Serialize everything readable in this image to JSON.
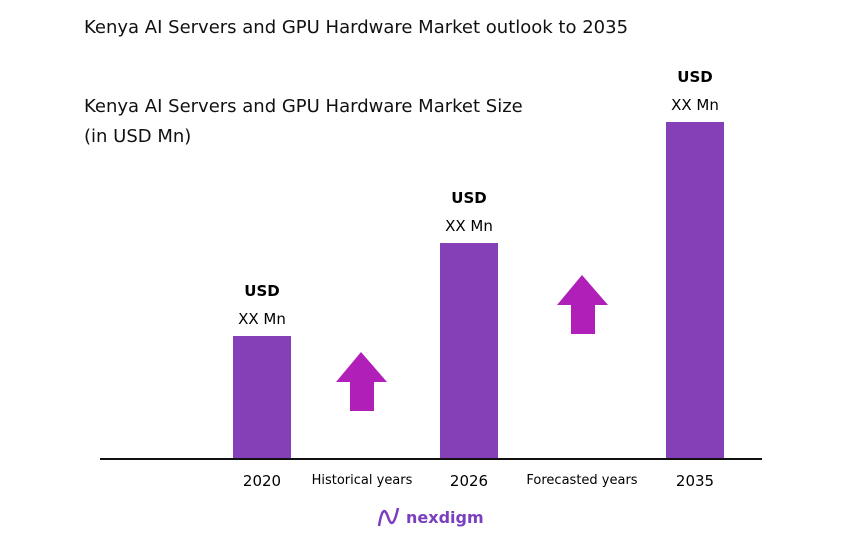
{
  "chart_data": {
    "type": "bar",
    "title": "Kenya AI Servers and GPU Hardware Market outlook to 2035",
    "subtitle_line1": "Kenya AI Servers and GPU Hardware Market Size",
    "subtitle_line2": "(in USD Mn)",
    "categories": [
      "2020",
      "2026",
      "2035"
    ],
    "values": [
      123,
      216,
      337
    ],
    "data_labels": [
      {
        "currency": "USD",
        "value": "XX Mn"
      },
      {
        "currency": "USD",
        "value": "XX Mn"
      },
      {
        "currency": "USD",
        "value": "XX Mn"
      }
    ],
    "period_labels": [
      "Historical years",
      "Forecasted years"
    ],
    "grid": false,
    "colors": {
      "bar": "#8540b8",
      "arrow": "#b020b8",
      "axis": "#111111"
    }
  },
  "brand": {
    "name": "nexdigm"
  }
}
